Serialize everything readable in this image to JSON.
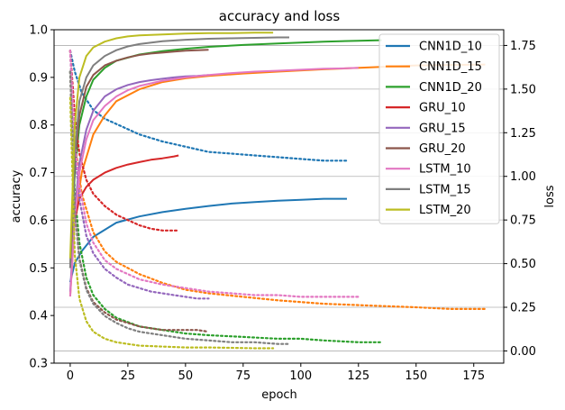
{
  "chart_data": {
    "type": "line",
    "title": "accuracy and loss",
    "xlabel": "epoch",
    "ylabel": "accuracy",
    "y2label": "loss",
    "xlim": [
      -7,
      188
    ],
    "ylim": [
      0.3,
      1.0
    ],
    "y2lim": [
      -0.07,
      1.84
    ],
    "xticks": [
      0,
      25,
      50,
      75,
      100,
      125,
      150,
      175
    ],
    "yticks": [
      0.3,
      0.4,
      0.5,
      0.6,
      0.7,
      0.8,
      0.9,
      1.0
    ],
    "y2ticks": [
      0.0,
      0.25,
      0.5,
      0.75,
      1.0,
      1.25,
      1.5,
      1.75
    ],
    "grid": "horizontal on right axis",
    "legend_position": "top-right",
    "series": [
      {
        "name": "CNN1D_10",
        "color": "#1f77b4",
        "accuracy": {
          "x": [
            0,
            2,
            5,
            10,
            15,
            20,
            30,
            40,
            50,
            60,
            70,
            80,
            90,
            100,
            110,
            120
          ],
          "y": [
            0.47,
            0.51,
            0.535,
            0.565,
            0.58,
            0.595,
            0.608,
            0.617,
            0.624,
            0.63,
            0.635,
            0.638,
            0.641,
            0.643,
            0.645,
            0.645
          ]
        },
        "loss": {
          "x": [
            0,
            2,
            5,
            10,
            15,
            20,
            30,
            40,
            50,
            60,
            70,
            80,
            90,
            100,
            110,
            120
          ],
          "y": [
            1.72,
            1.6,
            1.48,
            1.38,
            1.33,
            1.3,
            1.24,
            1.2,
            1.17,
            1.14,
            1.13,
            1.12,
            1.11,
            1.1,
            1.09,
            1.09
          ]
        }
      },
      {
        "name": "CNN1D_15",
        "color": "#ff7f0e",
        "accuracy": {
          "x": [
            0,
            2,
            5,
            10,
            15,
            20,
            30,
            40,
            50,
            60,
            75,
            90,
            110,
            130,
            150,
            165,
            180
          ],
          "y": [
            0.44,
            0.6,
            0.7,
            0.78,
            0.82,
            0.85,
            0.875,
            0.89,
            0.898,
            0.903,
            0.908,
            0.912,
            0.917,
            0.921,
            0.925,
            0.926,
            0.927
          ]
        },
        "loss": {
          "x": [
            0,
            2,
            5,
            10,
            15,
            20,
            30,
            40,
            50,
            60,
            75,
            90,
            110,
            130,
            150,
            165,
            180
          ],
          "y": [
            1.72,
            1.2,
            0.9,
            0.68,
            0.57,
            0.51,
            0.44,
            0.39,
            0.35,
            0.33,
            0.31,
            0.29,
            0.27,
            0.26,
            0.25,
            0.24,
            0.24
          ]
        }
      },
      {
        "name": "CNN1D_20",
        "color": "#2ca02c",
        "accuracy": {
          "x": [
            0,
            2,
            4,
            7,
            10,
            15,
            20,
            30,
            40,
            50,
            60,
            75,
            90,
            100,
            110,
            125,
            135
          ],
          "y": [
            0.5,
            0.7,
            0.8,
            0.86,
            0.895,
            0.92,
            0.935,
            0.948,
            0.955,
            0.96,
            0.964,
            0.968,
            0.971,
            0.973,
            0.975,
            0.977,
            0.978
          ]
        },
        "loss": {
          "x": [
            0,
            2,
            4,
            7,
            10,
            15,
            20,
            30,
            40,
            50,
            60,
            75,
            90,
            100,
            110,
            125,
            135
          ],
          "y": [
            1.6,
            0.9,
            0.62,
            0.42,
            0.32,
            0.24,
            0.19,
            0.14,
            0.12,
            0.1,
            0.09,
            0.08,
            0.07,
            0.07,
            0.06,
            0.05,
            0.05
          ]
        }
      },
      {
        "name": "GRU_10",
        "color": "#d62728",
        "accuracy": {
          "x": [
            0,
            2,
            4,
            7,
            10,
            15,
            20,
            25,
            30,
            35,
            40,
            45,
            47
          ],
          "y": [
            0.52,
            0.6,
            0.645,
            0.67,
            0.685,
            0.7,
            0.71,
            0.717,
            0.722,
            0.727,
            0.73,
            0.734,
            0.736
          ]
        },
        "loss": {
          "x": [
            0,
            2,
            4,
            7,
            10,
            15,
            20,
            25,
            30,
            35,
            40,
            45,
            47
          ],
          "y": [
            1.72,
            1.35,
            1.13,
            0.98,
            0.9,
            0.83,
            0.78,
            0.75,
            0.72,
            0.7,
            0.69,
            0.69,
            0.69
          ]
        }
      },
      {
        "name": "GRU_15",
        "color": "#9467bd",
        "accuracy": {
          "x": [
            0,
            2,
            4,
            7,
            10,
            15,
            20,
            25,
            30,
            35,
            40,
            45,
            50,
            55,
            60
          ],
          "y": [
            0.45,
            0.62,
            0.72,
            0.79,
            0.83,
            0.86,
            0.875,
            0.884,
            0.89,
            0.894,
            0.897,
            0.9,
            0.902,
            0.903,
            0.905
          ]
        },
        "loss": {
          "x": [
            0,
            2,
            4,
            7,
            10,
            15,
            20,
            25,
            30,
            35,
            40,
            45,
            50,
            55,
            60
          ],
          "y": [
            1.72,
            1.15,
            0.87,
            0.66,
            0.56,
            0.47,
            0.42,
            0.38,
            0.36,
            0.34,
            0.33,
            0.32,
            0.31,
            0.3,
            0.3
          ]
        }
      },
      {
        "name": "GRU_20",
        "color": "#8c564b",
        "accuracy": {
          "x": [
            0,
            2,
            4,
            7,
            10,
            15,
            20,
            25,
            30,
            35,
            40,
            45,
            50,
            55,
            60
          ],
          "y": [
            0.5,
            0.72,
            0.82,
            0.88,
            0.905,
            0.925,
            0.935,
            0.942,
            0.947,
            0.95,
            0.952,
            0.954,
            0.956,
            0.957,
            0.958
          ]
        },
        "loss": {
          "x": [
            0,
            2,
            4,
            7,
            10,
            15,
            20,
            25,
            30,
            35,
            40,
            45,
            50,
            55,
            60
          ],
          "y": [
            1.6,
            0.82,
            0.53,
            0.36,
            0.28,
            0.22,
            0.18,
            0.16,
            0.14,
            0.13,
            0.12,
            0.12,
            0.12,
            0.12,
            0.11
          ]
        }
      },
      {
        "name": "LSTM_10",
        "color": "#e377c2",
        "accuracy": {
          "x": [
            0,
            2,
            4,
            7,
            10,
            15,
            20,
            25,
            30,
            40,
            50,
            60,
            70,
            80,
            90,
            100,
            110,
            120,
            125
          ],
          "y": [
            0.44,
            0.6,
            0.7,
            0.77,
            0.81,
            0.84,
            0.86,
            0.873,
            0.882,
            0.893,
            0.9,
            0.905,
            0.909,
            0.912,
            0.914,
            0.916,
            0.918,
            0.919,
            0.92
          ]
        },
        "loss": {
          "x": [
            0,
            2,
            4,
            7,
            10,
            15,
            20,
            25,
            30,
            40,
            50,
            60,
            70,
            80,
            90,
            100,
            110,
            120,
            125
          ],
          "y": [
            1.72,
            1.2,
            0.95,
            0.73,
            0.62,
            0.52,
            0.47,
            0.44,
            0.41,
            0.38,
            0.36,
            0.34,
            0.33,
            0.32,
            0.32,
            0.31,
            0.31,
            0.31,
            0.31
          ]
        }
      },
      {
        "name": "LSTM_15",
        "color": "#7f7f7f",
        "accuracy": {
          "x": [
            0,
            2,
            4,
            7,
            10,
            15,
            20,
            25,
            30,
            40,
            50,
            60,
            70,
            80,
            90,
            95
          ],
          "y": [
            0.5,
            0.74,
            0.85,
            0.9,
            0.925,
            0.945,
            0.957,
            0.965,
            0.97,
            0.976,
            0.979,
            0.981,
            0.982,
            0.983,
            0.984,
            0.984
          ]
        },
        "loss": {
          "x": [
            0,
            2,
            4,
            7,
            10,
            15,
            20,
            25,
            30,
            40,
            50,
            60,
            70,
            80,
            90,
            95
          ],
          "y": [
            1.6,
            0.8,
            0.52,
            0.35,
            0.27,
            0.2,
            0.16,
            0.13,
            0.11,
            0.09,
            0.07,
            0.06,
            0.05,
            0.05,
            0.04,
            0.04
          ]
        }
      },
      {
        "name": "LSTM_20",
        "color": "#bcbd22",
        "accuracy": {
          "x": [
            0,
            2,
            4,
            7,
            10,
            15,
            20,
            25,
            30,
            40,
            50,
            60,
            70,
            80,
            88
          ],
          "y": [
            0.52,
            0.8,
            0.9,
            0.945,
            0.963,
            0.975,
            0.982,
            0.986,
            0.988,
            0.99,
            0.992,
            0.993,
            0.993,
            0.994,
            0.994
          ]
        },
        "loss": {
          "x": [
            0,
            2,
            4,
            7,
            10,
            15,
            20,
            25,
            30,
            40,
            50,
            60,
            70,
            80,
            88
          ],
          "y": [
            1.45,
            0.55,
            0.3,
            0.17,
            0.11,
            0.07,
            0.05,
            0.04,
            0.03,
            0.025,
            0.02,
            0.02,
            0.018,
            0.015,
            0.015
          ]
        }
      }
    ]
  }
}
